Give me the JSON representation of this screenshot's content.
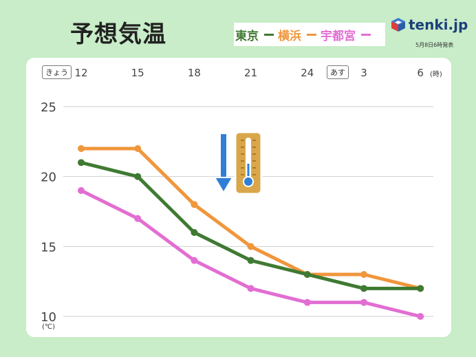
{
  "header": {
    "title": "予想気温",
    "brand": "tenki.jp",
    "issued": "5月8日6時発表"
  },
  "legend": [
    {
      "name": "東京",
      "color": "#3f7a32"
    },
    {
      "name": "横浜",
      "color": "#f0963c"
    },
    {
      "name": "宇都宮",
      "color": "#e26ed2"
    }
  ],
  "badges": {
    "today": "きょう",
    "tomorrow": "あす"
  },
  "units": {
    "hour": "(時)",
    "temp": "(℃)"
  },
  "icons": {
    "arrow": "down-arrow-icon",
    "thermometer": "thermometer-icon"
  },
  "chart_data": {
    "type": "line",
    "categories": [
      "12",
      "15",
      "18",
      "21",
      "24",
      "3",
      "6"
    ],
    "ylim": [
      10,
      25
    ],
    "yticks": [
      10,
      15,
      20,
      25
    ],
    "grid": true,
    "legend_position": "top-right",
    "series": [
      {
        "name": "横浜",
        "color": "#f0963c",
        "values": [
          22,
          22,
          18,
          15,
          13,
          13,
          12
        ]
      },
      {
        "name": "東京",
        "color": "#3f7a32",
        "values": [
          21,
          20,
          16,
          14,
          13,
          12,
          12
        ]
      },
      {
        "name": "宇都宮",
        "color": "#e26ed2",
        "values": [
          19,
          17,
          14,
          12,
          11,
          11,
          10
        ]
      }
    ]
  }
}
